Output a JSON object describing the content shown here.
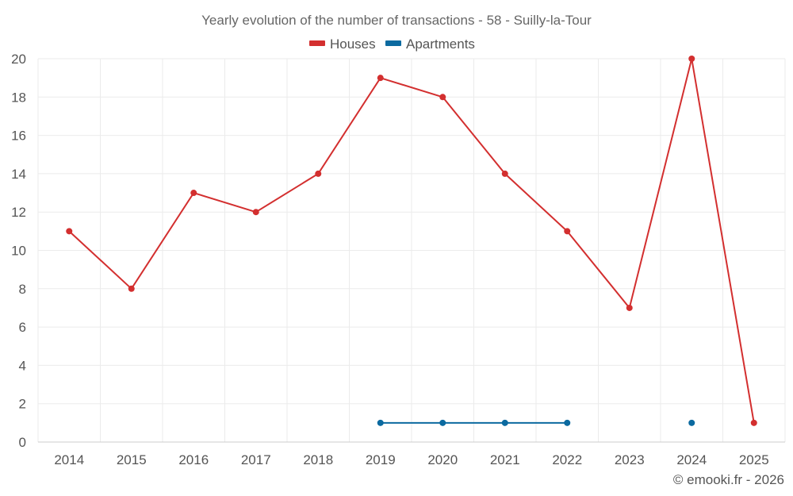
{
  "chart_data": {
    "type": "line",
    "title": "Yearly evolution of the number of transactions - 58 - Suilly-la-Tour",
    "categories": [
      "2014",
      "2015",
      "2016",
      "2017",
      "2018",
      "2019",
      "2020",
      "2021",
      "2022",
      "2023",
      "2024",
      "2025"
    ],
    "series": [
      {
        "name": "Houses",
        "color": "#d32f2f",
        "values": [
          11,
          8,
          13,
          12,
          14,
          19,
          18,
          14,
          11,
          7,
          20,
          1
        ]
      },
      {
        "name": "Apartments",
        "color": "#0b6aa0",
        "values": [
          null,
          null,
          null,
          null,
          null,
          1,
          1,
          1,
          1,
          null,
          1,
          null
        ]
      }
    ],
    "xlabel": "",
    "ylabel": "",
    "ylim": [
      0,
      20
    ],
    "yticks": [
      "0",
      "2",
      "4",
      "6",
      "8",
      "10",
      "12",
      "14",
      "16",
      "18",
      "20"
    ],
    "grid": true,
    "legend": "top-center"
  },
  "credit": "© emooki.fr - 2026"
}
